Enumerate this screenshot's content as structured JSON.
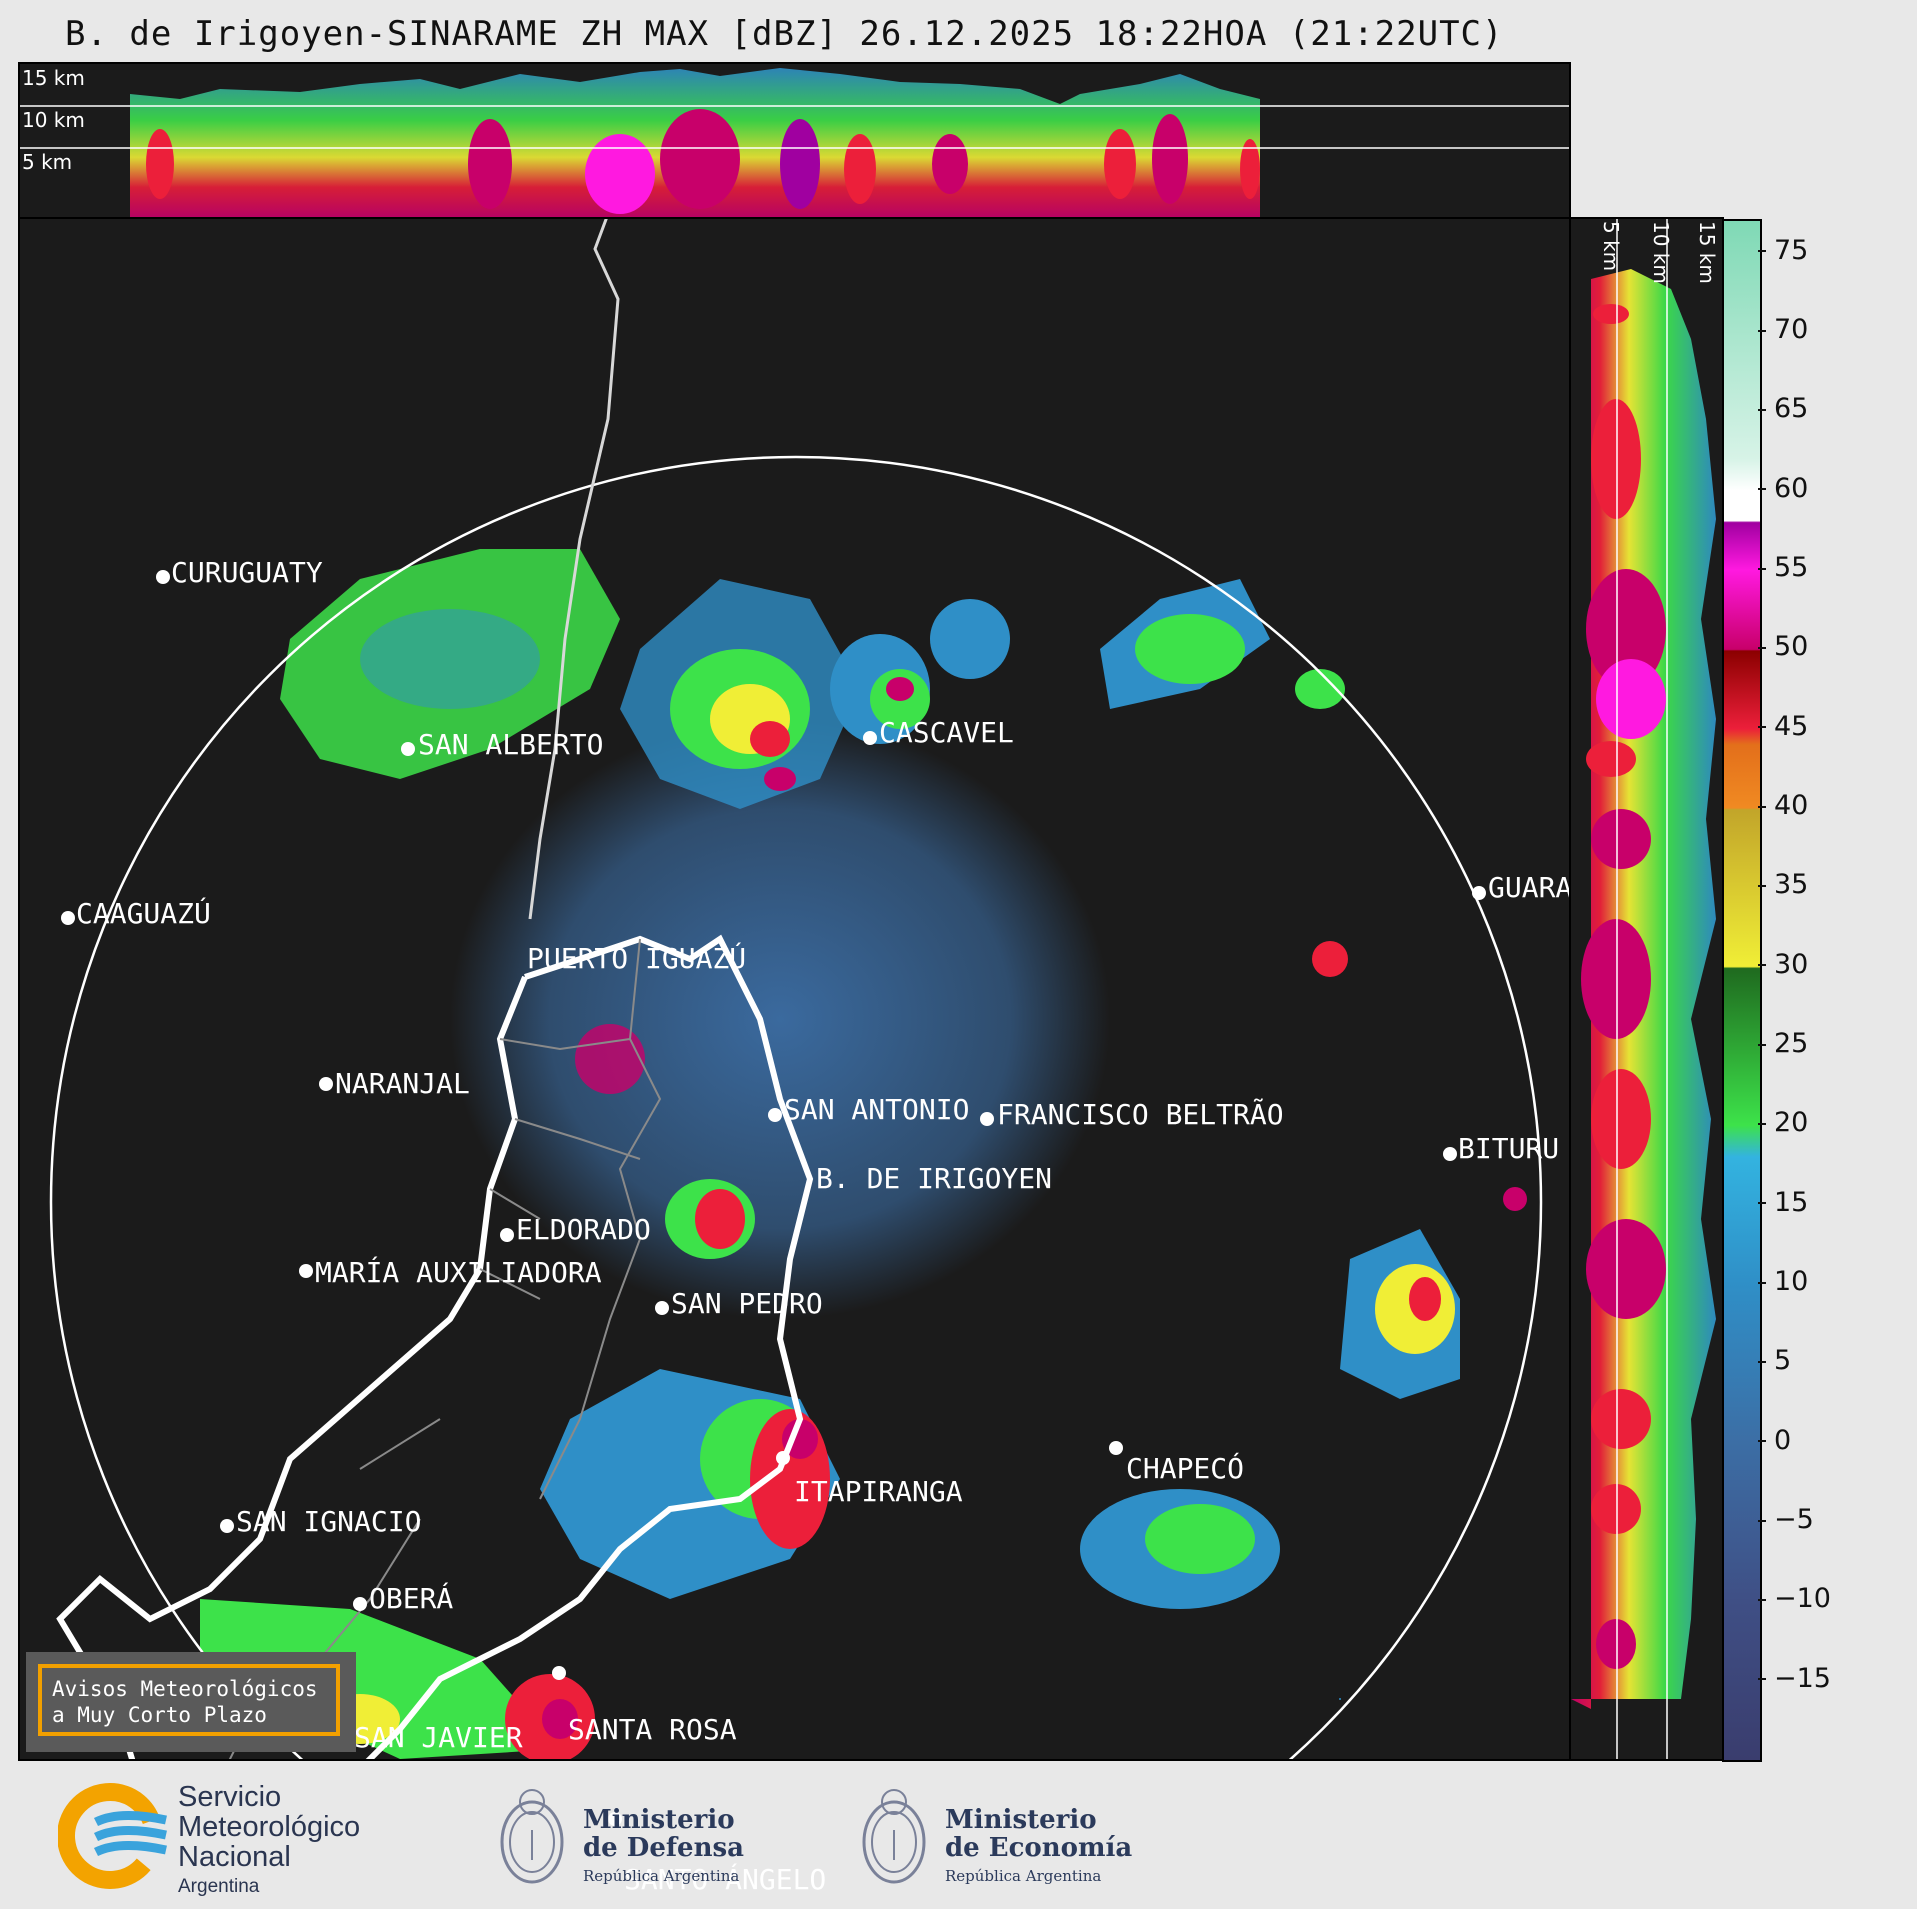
{
  "title": "B. de Irigoyen-SINARAME ZH MAX [dBZ] 26.12.2025 18:22HOA (21:22UTC)",
  "height_labels": {
    "top": [
      "15 km",
      "10 km",
      "5 km"
    ],
    "right": [
      "5 km",
      "10 km",
      "15 km"
    ]
  },
  "cities": [
    {
      "name": "CURUGUATY"
    },
    {
      "name": "SAN ALBERTO"
    },
    {
      "name": "CASCAVEL"
    },
    {
      "name": "CAAGUAZÚ"
    },
    {
      "name": "GUARA"
    },
    {
      "name": "PUERTO IGUAZÚ"
    },
    {
      "name": "NARANJAL"
    },
    {
      "name": "SAN ANTONIO"
    },
    {
      "name": "FRANCISCO BELTRÃO"
    },
    {
      "name": "BITURU"
    },
    {
      "name": "B. DE IRIGOYEN"
    },
    {
      "name": "ELDORADO"
    },
    {
      "name": "MARÍA AUXILIADORA"
    },
    {
      "name": "SAN PEDRO"
    },
    {
      "name": "ITAPIRANGA"
    },
    {
      "name": "CHAPECÓ"
    },
    {
      "name": "SAN IGNACIO"
    },
    {
      "name": "OBERÁ"
    },
    {
      "name": "SAN JAVIER"
    },
    {
      "name": "SANTA ROSA"
    },
    {
      "name": "SANTO ÁNGELO"
    }
  ],
  "colorbar": {
    "ticks": [
      "75",
      "70",
      "65",
      "60",
      "55",
      "50",
      "45",
      "40",
      "35",
      "30",
      "25",
      "20",
      "15",
      "10",
      "5",
      "0",
      "−5",
      "−10",
      "−15"
    ],
    "range": [
      -20,
      77
    ],
    "stops": [
      {
        "v": -20,
        "c": "#3a3d6e"
      },
      {
        "v": -10,
        "c": "#3f4f85"
      },
      {
        "v": 0,
        "c": "#3c6ea5"
      },
      {
        "v": 10,
        "c": "#2f8fc7"
      },
      {
        "v": 18,
        "c": "#33b3e0"
      },
      {
        "v": 20,
        "c": "#3de24a"
      },
      {
        "v": 29.9,
        "c": "#1f6a1f"
      },
      {
        "v": 30,
        "c": "#f0ee36"
      },
      {
        "v": 39.9,
        "c": "#c2a52a"
      },
      {
        "v": 40,
        "c": "#f08a22"
      },
      {
        "v": 44,
        "c": "#e36f1b"
      },
      {
        "v": 45,
        "c": "#ec1f3a"
      },
      {
        "v": 49.9,
        "c": "#8b0000"
      },
      {
        "v": 50,
        "c": "#c8006a"
      },
      {
        "v": 55,
        "c": "#ff19e0"
      },
      {
        "v": 58,
        "c": "#a000a0"
      },
      {
        "v": 58.1,
        "c": "#ffffff"
      },
      {
        "v": 60,
        "c": "#ffffff"
      },
      {
        "v": 62,
        "c": "#d7f3e7"
      },
      {
        "v": 77,
        "c": "#7fd9b5"
      }
    ]
  },
  "avisos": {
    "line1": "Avisos Meteorológicos",
    "line2": "a Muy Corto Plazo"
  },
  "logos": {
    "smn": {
      "line1": "Servicio",
      "line2": "Meteorológico",
      "line3": "Nacional",
      "line4": "Argentina"
    },
    "defensa": {
      "line1": "Ministerio",
      "line2": "de Defensa",
      "line3": "República Argentina"
    },
    "economia": {
      "line1": "Ministerio",
      "line2": "de Economía",
      "line3": "República Argentina"
    }
  }
}
